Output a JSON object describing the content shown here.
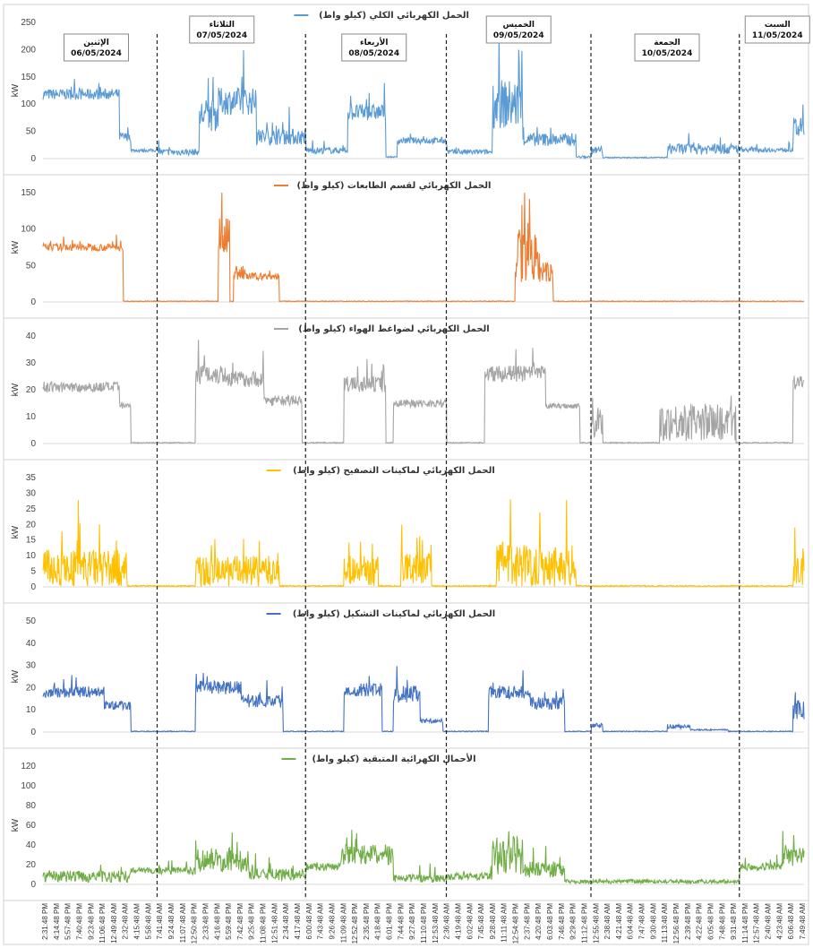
{
  "chart_data": {
    "type": "line",
    "ylabel": "kW",
    "x_ticks": [
      "2:31:48 PM",
      "4:14:48 PM",
      "5:57:48 PM",
      "7:40:48 PM",
      "9:23:48 PM",
      "11:06:48 PM",
      "12:49:48 AM",
      "2:32:48 AM",
      "4:15:48 AM",
      "5:58:48 AM",
      "7:41:48 AM",
      "9:24:48 AM",
      "11:07:48 AM",
      "12:50:48 PM",
      "2:33:48 PM",
      "4:16:48 PM",
      "5:59:48 PM",
      "7:42:48 PM",
      "9:25:48 PM",
      "11:08:48 PM",
      "12:51:48 AM",
      "2:34:48 AM",
      "4:17:48 AM",
      "6:00:48 AM",
      "7:43:48 AM",
      "9:26:48 AM",
      "11:09:48 AM",
      "12:52:48 PM",
      "2:35:48 PM",
      "4:18:48 PM",
      "6:01:48 PM",
      "7:44:48 PM",
      "9:27:48 PM",
      "11:10:48 PM",
      "12:53:48 AM",
      "2:36:48 AM",
      "4:19:48 AM",
      "6:02:48 AM",
      "7:45:48 AM",
      "9:28:48 AM",
      "11:11:48 AM",
      "12:54:48 PM",
      "2:37:48 PM",
      "4:20:48 PM",
      "6:03:48 PM",
      "7:46:48 PM",
      "9:29:48 PM",
      "11:12:48 PM",
      "12:55:48 AM",
      "2:38:48 AM",
      "4:21:48 AM",
      "6:04:48 AM",
      "7:47:48 AM",
      "9:30:48 AM",
      "11:13:48 AM",
      "12:56:48 PM",
      "2:39:48 PM",
      "4:22:48 PM",
      "6:05:48 PM",
      "7:48:48 PM",
      "9:31:48 PM",
      "11:14:48 PM",
      "12:57:48 AM",
      "2:40:48 AM",
      "4:23:48 AM",
      "6:06:48 AM",
      "7:49:48 AM"
    ],
    "x_range": [
      0,
      100
    ],
    "day_boundaries": [
      15,
      34.5,
      53,
      72,
      91.5
    ],
    "day_labels": [
      {
        "day": "الإثنين",
        "date": "06/05/2024",
        "x": 7
      },
      {
        "day": "الثلاثاء",
        "date": "07/05/2024",
        "x": 23.5
      },
      {
        "day": "الأربعاء",
        "date": "08/05/2024",
        "x": 43.5
      },
      {
        "day": "الخميس",
        "date": "09/05/2024",
        "x": 62.5
      },
      {
        "day": "الجمعة",
        "date": "10/05/2024",
        "x": 82
      },
      {
        "day": "السبت",
        "date": "11/05/2024",
        "x": 96.5
      }
    ],
    "panels": [
      {
        "name": "الحمل الكهربائي الكلي (كيلو واط)",
        "color": "#5b9bd5",
        "ylim": [
          0,
          250
        ],
        "ystep": 50,
        "segments": [
          {
            "x": [
              0,
              10
            ],
            "base": 118,
            "noise": 10
          },
          {
            "x": [
              10,
              11.5
            ],
            "base": 40,
            "noise": 8
          },
          {
            "x": [
              11.5,
              15
            ],
            "base": 15,
            "noise": 3
          },
          {
            "x": [
              15,
              20.5
            ],
            "base": 12,
            "noise": 6
          },
          {
            "x": [
              20.5,
              23
            ],
            "base": 80,
            "noise": 30
          },
          {
            "x": [
              23,
              28
            ],
            "base": 105,
            "noise": 25
          },
          {
            "x": [
              28,
              34.5
            ],
            "base": 40,
            "noise": 15
          },
          {
            "x": [
              34.5,
              40
            ],
            "base": 15,
            "noise": 6
          },
          {
            "x": [
              40,
              45
            ],
            "base": 85,
            "noise": 15
          },
          {
            "x": [
              45,
              46.5
            ],
            "base": 3,
            "noise": 1
          },
          {
            "x": [
              46.5,
              53
            ],
            "base": 33,
            "noise": 6
          },
          {
            "x": [
              53,
              59
            ],
            "base": 12,
            "noise": 5
          },
          {
            "x": [
              59,
              63
            ],
            "base": 100,
            "noise": 45
          },
          {
            "x": [
              63,
              70
            ],
            "base": 35,
            "noise": 12
          },
          {
            "x": [
              70,
              72
            ],
            "base": 3,
            "noise": 2
          },
          {
            "x": [
              72,
              73.5
            ],
            "base": 15,
            "noise": 8
          },
          {
            "x": [
              73.5,
              82
            ],
            "base": 2,
            "noise": 1
          },
          {
            "x": [
              82,
              91.5
            ],
            "base": 18,
            "noise": 10
          },
          {
            "x": [
              91.5,
              98.5
            ],
            "base": 16,
            "noise": 4
          },
          {
            "x": [
              98.5,
              100
            ],
            "base": 55,
            "noise": 20
          }
        ]
      },
      {
        "name": "الحمل الكهربائي لقسم الطابعات (كيلو واط)",
        "color": "#ed7d31",
        "ylim": [
          0,
          150
        ],
        "ystep": 50,
        "segments": [
          {
            "x": [
              0,
              10.5
            ],
            "base": 75,
            "noise": 5
          },
          {
            "x": [
              10.5,
              23
            ],
            "base": 1,
            "noise": 0.5
          },
          {
            "x": [
              23,
              24.5
            ],
            "base": 90,
            "noise": 25
          },
          {
            "x": [
              24.5,
              25
            ],
            "base": 1,
            "noise": 0.5
          },
          {
            "x": [
              25,
              26.5
            ],
            "base": 40,
            "noise": 10
          },
          {
            "x": [
              26.5,
              31
            ],
            "base": 35,
            "noise": 5
          },
          {
            "x": [
              31,
              62
            ],
            "base": 1,
            "noise": 0.5
          },
          {
            "x": [
              62,
              65
            ],
            "base": 60,
            "noise": 35
          },
          {
            "x": [
              65,
              67
            ],
            "base": 40,
            "noise": 15
          },
          {
            "x": [
              67,
              100
            ],
            "base": 1,
            "noise": 0.5
          }
        ]
      },
      {
        "name": "الحمل الكهربائي لضواغط الهواء (كيلو واط)",
        "color": "#a5a5a5",
        "ylim": [
          0,
          40
        ],
        "ystep": 10,
        "segments": [
          {
            "x": [
              0,
              10
            ],
            "base": 21,
            "noise": 2
          },
          {
            "x": [
              10,
              11.5
            ],
            "base": 14,
            "noise": 1.5
          },
          {
            "x": [
              11.5,
              20
            ],
            "base": 0.3,
            "noise": 0.2
          },
          {
            "x": [
              20,
              24
            ],
            "base": 26,
            "noise": 4
          },
          {
            "x": [
              24,
              29
            ],
            "base": 24,
            "noise": 3
          },
          {
            "x": [
              29,
              34
            ],
            "base": 16,
            "noise": 2
          },
          {
            "x": [
              34,
              39.5
            ],
            "base": 0.3,
            "noise": 0.2
          },
          {
            "x": [
              39.5,
              45
            ],
            "base": 22,
            "noise": 3
          },
          {
            "x": [
              45,
              46
            ],
            "base": 0.3,
            "noise": 0.2
          },
          {
            "x": [
              46,
              53
            ],
            "base": 15,
            "noise": 1.5
          },
          {
            "x": [
              53,
              58
            ],
            "base": 0.3,
            "noise": 0.2
          },
          {
            "x": [
              58,
              66
            ],
            "base": 26,
            "noise": 3
          },
          {
            "x": [
              66,
              70.5
            ],
            "base": 14,
            "noise": 1
          },
          {
            "x": [
              70.5,
              72
            ],
            "base": 0.3,
            "noise": 0.2
          },
          {
            "x": [
              72,
              73.5
            ],
            "base": 8,
            "noise": 7
          },
          {
            "x": [
              73.5,
              81
            ],
            "base": 0.3,
            "noise": 0.2
          },
          {
            "x": [
              81,
              91
            ],
            "base": 8,
            "noise": 7
          },
          {
            "x": [
              91,
              98.5
            ],
            "base": 0.3,
            "noise": 0.2
          },
          {
            "x": [
              98.5,
              100
            ],
            "base": 23,
            "noise": 3
          }
        ]
      },
      {
        "name": "الحمل الكهربائي لماكينات التصفيح (كيلو واط)",
        "color": "#ffc000",
        "ylim": [
          0,
          35
        ],
        "ystep": 5,
        "segments": [
          {
            "x": [
              0,
              11
            ],
            "base": 6,
            "noise": 6
          },
          {
            "x": [
              11,
              20
            ],
            "base": 0.3,
            "noise": 0.2
          },
          {
            "x": [
              20,
              31
            ],
            "base": 5,
            "noise": 5
          },
          {
            "x": [
              31,
              39.5
            ],
            "base": 0.3,
            "noise": 0.2
          },
          {
            "x": [
              39.5,
              44
            ],
            "base": 5,
            "noise": 5
          },
          {
            "x": [
              44,
              47
            ],
            "base": 0.3,
            "noise": 0.2
          },
          {
            "x": [
              47,
              51
            ],
            "base": 6,
            "noise": 5
          },
          {
            "x": [
              51,
              59.5
            ],
            "base": 0.3,
            "noise": 0.2
          },
          {
            "x": [
              59.5,
              70
            ],
            "base": 7,
            "noise": 7
          },
          {
            "x": [
              70,
              98.5
            ],
            "base": 0.3,
            "noise": 0.2
          },
          {
            "x": [
              98.5,
              100
            ],
            "base": 6,
            "noise": 6
          }
        ]
      },
      {
        "name": "الحمل الكهربائي لماكينات التشكيل (كيلو واط)",
        "color": "#4472c4",
        "ylim": [
          0,
          50
        ],
        "ystep": 10,
        "segments": [
          {
            "x": [
              0,
              8
            ],
            "base": 18,
            "noise": 2.5
          },
          {
            "x": [
              8,
              11.5
            ],
            "base": 12,
            "noise": 2
          },
          {
            "x": [
              11.5,
              20
            ],
            "base": 0.3,
            "noise": 0.2
          },
          {
            "x": [
              20,
              26
            ],
            "base": 20,
            "noise": 3
          },
          {
            "x": [
              26,
              31.5
            ],
            "base": 14,
            "noise": 3
          },
          {
            "x": [
              31.5,
              39.5
            ],
            "base": 0.3,
            "noise": 0.2
          },
          {
            "x": [
              39.5,
              44.5
            ],
            "base": 19,
            "noise": 3
          },
          {
            "x": [
              44.5,
              46
            ],
            "base": 0.3,
            "noise": 0.2
          },
          {
            "x": [
              46,
              49.5
            ],
            "base": 17,
            "noise": 4
          },
          {
            "x": [
              49.5,
              52.5
            ],
            "base": 5,
            "noise": 1
          },
          {
            "x": [
              52.5,
              58.5
            ],
            "base": 0.3,
            "noise": 0.2
          },
          {
            "x": [
              58.5,
              64
            ],
            "base": 18,
            "noise": 3
          },
          {
            "x": [
              64,
              68.5
            ],
            "base": 13,
            "noise": 3
          },
          {
            "x": [
              68.5,
              72
            ],
            "base": 0.3,
            "noise": 0.2
          },
          {
            "x": [
              72,
              73.5
            ],
            "base": 3,
            "noise": 1
          },
          {
            "x": [
              73.5,
              82
            ],
            "base": 0.3,
            "noise": 0.2
          },
          {
            "x": [
              82,
              85
            ],
            "base": 2.5,
            "noise": 1
          },
          {
            "x": [
              85,
              90
            ],
            "base": 1,
            "noise": 0.3
          },
          {
            "x": [
              90,
              98.5
            ],
            "base": 0.3,
            "noise": 0.2
          },
          {
            "x": [
              98.5,
              100
            ],
            "base": 10,
            "noise": 5
          }
        ]
      },
      {
        "name": "الأحمال الكهرائية المتبقية (كيلو واط)",
        "color": "#70ad47",
        "ylim": [
          0,
          120
        ],
        "ystep": 20,
        "segments": [
          {
            "x": [
              0,
              11.5
            ],
            "base": 8,
            "noise": 6
          },
          {
            "x": [
              11.5,
              15
            ],
            "base": 14,
            "noise": 3
          },
          {
            "x": [
              15,
              20
            ],
            "base": 14,
            "noise": 4
          },
          {
            "x": [
              20,
              27
            ],
            "base": 25,
            "noise": 12
          },
          {
            "x": [
              27,
              34.5
            ],
            "base": 10,
            "noise": 6
          },
          {
            "x": [
              34.5,
              39
            ],
            "base": 18,
            "noise": 4
          },
          {
            "x": [
              39,
              46
            ],
            "base": 30,
            "noise": 10
          },
          {
            "x": [
              46,
              53
            ],
            "base": 6,
            "noise": 4
          },
          {
            "x": [
              53,
              59
            ],
            "base": 8,
            "noise": 4
          },
          {
            "x": [
              59,
              63
            ],
            "base": 30,
            "noise": 20
          },
          {
            "x": [
              63,
              68.5
            ],
            "base": 15,
            "noise": 8
          },
          {
            "x": [
              68.5,
              72
            ],
            "base": 3,
            "noise": 2
          },
          {
            "x": [
              72,
              91.5
            ],
            "base": 3,
            "noise": 2
          },
          {
            "x": [
              91.5,
              97
            ],
            "base": 18,
            "noise": 4
          },
          {
            "x": [
              97,
              100
            ],
            "base": 28,
            "noise": 10
          }
        ]
      }
    ]
  }
}
